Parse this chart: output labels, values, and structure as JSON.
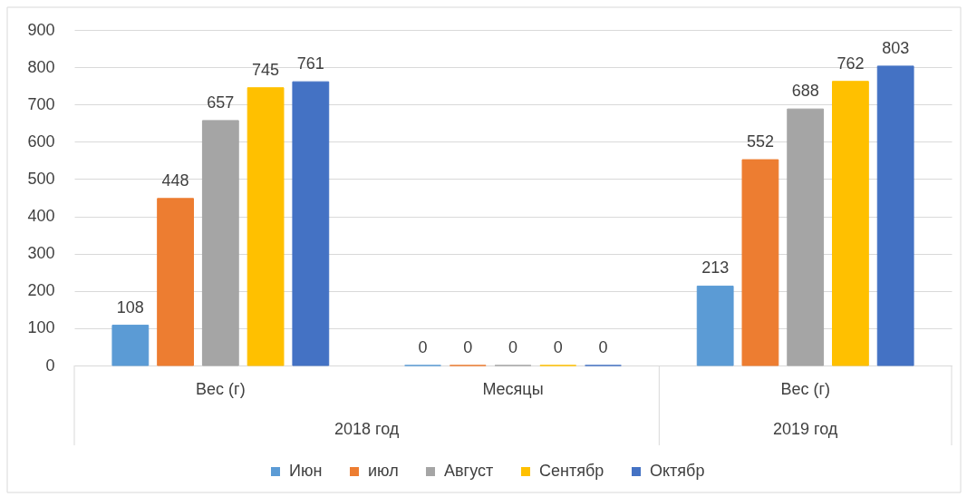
{
  "chart_data": {
    "type": "bar",
    "categories": [
      "Вес (г)",
      "Месяцы",
      "Вес (г)"
    ],
    "series": [
      {
        "name": "Июн",
        "color": "#5b9bd5",
        "values": [
          108,
          0,
          213
        ]
      },
      {
        "name": "июл",
        "color": "#ed7d31",
        "values": [
          448,
          0,
          552
        ]
      },
      {
        "name": "Август",
        "color": "#a5a5a5",
        "values": [
          657,
          0,
          688
        ]
      },
      {
        "name": "Сентябр",
        "color": "#ffc000",
        "values": [
          745,
          0,
          762
        ]
      },
      {
        "name": "Октябр",
        "color": "#4472c4",
        "values": [
          761,
          0,
          803
        ]
      }
    ],
    "ylim": [
      0,
      900
    ],
    "yticks": [
      0,
      100,
      200,
      300,
      400,
      500,
      600,
      700,
      800,
      900
    ],
    "grid": "y",
    "legend": "bottom",
    "data_labels": true,
    "annotations": [
      "2018 год",
      "2019 год"
    ]
  }
}
